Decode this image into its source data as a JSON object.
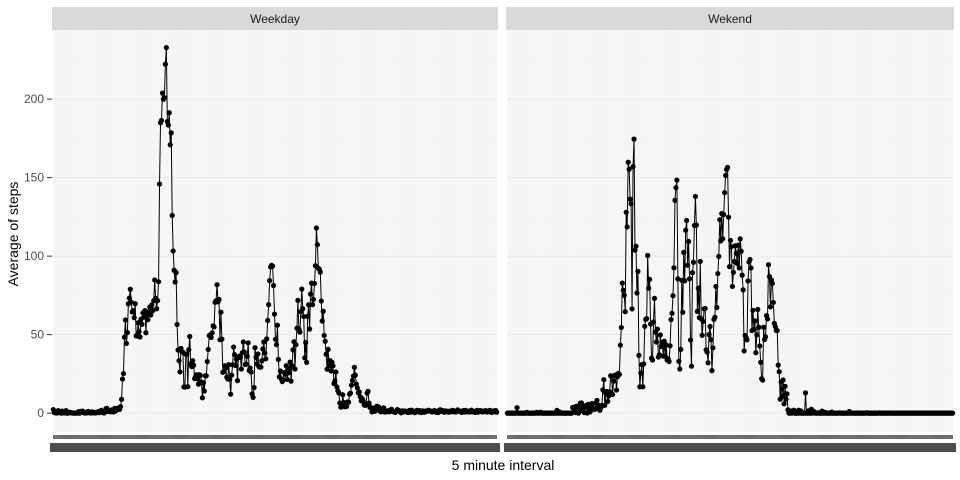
{
  "chart_data": {
    "type": "line",
    "facets": [
      {
        "label": "Weekday",
        "values": [
          2.3,
          0.4,
          0.2,
          0.2,
          0.1,
          1.6,
          0.7,
          1.1,
          0,
          1.3,
          0.3,
          0.1,
          0.4,
          1.6,
          0,
          0,
          0.4,
          0.6,
          0.2,
          0.3,
          0,
          0.1,
          0,
          0,
          0.2,
          0,
          1,
          0,
          0.9,
          1.2,
          1.3,
          0.3,
          0.1,
          0.2,
          0.1,
          0.9,
          1.1,
          0.2,
          0.4,
          0.1,
          0.8,
          0.4,
          0.1,
          0.5,
          0.2,
          0.7,
          0.9,
          0.3,
          1,
          1.8,
          0.6,
          0.4,
          0.1,
          0.9,
          2.9,
          3.1,
          1.2,
          1,
          1.5,
          0.9,
          2.1,
          0.9,
          0.8,
          3.1,
          1.4,
          2.5,
          3.2,
          3,
          2.4,
          4.2,
          8.8,
          21.7,
          25.2,
          48.4,
          59.3,
          44.4,
          51.3,
          69.6,
          73.3,
          78.9,
          70.7,
          64.5,
          65.3,
          60.8,
          69.7,
          49.3,
          49.1,
          57.6,
          51.9,
          48.5,
          59.9,
          56.6,
          63.8,
          61.1,
          65.3,
          51.2,
          63.9,
          59.5,
          64.7,
          67.6,
          62.5,
          68.9,
          65.3,
          71.6,
          84.8,
          73.2,
          66.5,
          71.7,
          83.7,
          145.9,
          184.9,
          186.4,
          203.8,
          199.9,
          200.9,
          222.2,
          232.8,
          185.7,
          183.5,
          191.3,
          170.9,
          178.5,
          125.9,
          103.3,
          91,
          83.5,
          89.5,
          56.5,
          40.2,
          33.4,
          26.3,
          41.3,
          39.1,
          38.8,
          16.7,
          16.6,
          37.6,
          37.6,
          16.9,
          40.4,
          48.8,
          31.5,
          29.7,
          33.4,
          30.5,
          22,
          23.3,
          24.5,
          21.9,
          18.5,
          24.5,
          24,
          19.8,
          9.8,
          19.4,
          14.1,
          23.8,
          23.8,
          32.9,
          40.6,
          49.4,
          49.7,
          48.2,
          51.1,
          55.6,
          54.9,
          70.6,
          71.5,
          81.8,
          70.9,
          72.4,
          46.8,
          64.3,
          47.1,
          26,
          26.3,
          30.2,
          28.8,
          22.9,
          21.8,
          30.9,
          21.6,
          12.1,
          24.2,
          30.8,
          42.1,
          37.3,
          30.4,
          34.3,
          20.7,
          35.6,
          36.3,
          35.4,
          28.1,
          38.5,
          45.3,
          38.9,
          31,
          31.2,
          36.2,
          44.8,
          27.2,
          28.8,
          26.2,
          12.3,
          10,
          16.3,
          41.7,
          35.5,
          31.3,
          37.7,
          29.6,
          29.4,
          29.3,
          33.3,
          40.9,
          45.3,
          38.3,
          34.6,
          47.3,
          59,
          69.1,
          84.4,
          93.1,
          94.1,
          93.6,
          81.3,
          63.1,
          47.1,
          43.6,
          56,
          34.2,
          23.1,
          26.9,
          21.8,
          20.1,
          21.3,
          25.8,
          24.8,
          30.2,
          21.5,
          25.6,
          28.3,
          32.5,
          20.4,
          30.2,
          40.3,
          45.5,
          28.1,
          43.6,
          54.1,
          71.8,
          53.5,
          51.6,
          64.6,
          79,
          66.5,
          61.5,
          35.2,
          45,
          32.3,
          61.7,
          69,
          53.6,
          75.8,
          82.8,
          69.1,
          72.4,
          82.6,
          93.9,
          117.9,
          107.3,
          92.3,
          91.7,
          89.8,
          71.4,
          58.7,
          64.9,
          49.5,
          45.8,
          37.5,
          28,
          40.6,
          30.4,
          33.5,
          26.9,
          32.4,
          30.1,
          18.9,
          20.5,
          26.2,
          16.7,
          14.3,
          12.9,
          6.5,
          3.8,
          4.4,
          11.7,
          6.8,
          4.1,
          6.4,
          4.3,
          7.1,
          7,
          12.1,
          12.8,
          17.8,
          20.8,
          23.6,
          29.2,
          24.2,
          18.5,
          16.1,
          13,
          13.5,
          10.5,
          7.9,
          9.2,
          7.7,
          5.3,
          4.9,
          5.4,
          12.8,
          13.9,
          6.4,
          3.6,
          3.7,
          0.8,
          1.8,
          3.1,
          1.2,
          2.1,
          4.4,
          3.3,
          3.9,
          1.4,
          0.9,
          2.6,
          2.3,
          3.4,
          0.7,
          1.3,
          0.9,
          1.4,
          1.6,
          0.9,
          1.3,
          2.5,
          1.4,
          1,
          0.8,
          0.5,
          1.2,
          2.3,
          1.9,
          1.5,
          0.9,
          0.2,
          1.5,
          0.7,
          1.2,
          1.4,
          1.1,
          0.6,
          0.4,
          1.6,
          1.8,
          0.6,
          1.9,
          1.2,
          0.9,
          0.3,
          0.8,
          1.8,
          1.5,
          0.8,
          1.6,
          0.5,
          0.4,
          1.5,
          0.9,
          0.6,
          1.4,
          1.1,
          1.5,
          1.9,
          1.6,
          1.4,
          0.9,
          0.8,
          1.1,
          1.7,
          1.3,
          0.5,
          1.3,
          0.4,
          1.2,
          2.2,
          1.1,
          1.8,
          1.5,
          0.6,
          1.5,
          0.9,
          1.3,
          0.7,
          0.6,
          1.4,
          1.2,
          0.9,
          1.8,
          1.2,
          0.8,
          0.7,
          1.5,
          2.1,
          1.3,
          1.1,
          1.2,
          0.5,
          1.4,
          1.6,
          0.7,
          1.8,
          1.4,
          0.8,
          1.2,
          0.7,
          1.5,
          1.9,
          0.8,
          1.3,
          0.9,
          0.5,
          1.4,
          1.8,
          0.6,
          1.2,
          1.7,
          1.2,
          0.8,
          1.4,
          0.9,
          1.3,
          1.6,
          0.7,
          1.2,
          0.9,
          1.8,
          1.2,
          0.5,
          1.4,
          1.1,
          0.9,
          1.7,
          0.6
        ]
      },
      {
        "label": "Wekend",
        "values": [
          0,
          0,
          0,
          0,
          0,
          0,
          0,
          0,
          0,
          0,
          3.5,
          0,
          0,
          0,
          0,
          0,
          0,
          0,
          0,
          0,
          0.5,
          0,
          0,
          0,
          0,
          0,
          0,
          0,
          0,
          0,
          0.5,
          0,
          0,
          0.3,
          0.6,
          0,
          0,
          0,
          0,
          0,
          0,
          0,
          0,
          0,
          0,
          0,
          0,
          0,
          0,
          0,
          0,
          1.8,
          0,
          0,
          0.6,
          0,
          0,
          0,
          0,
          0,
          0,
          0,
          0,
          0,
          0,
          0,
          0,
          3.6,
          3,
          3.9,
          0.4,
          4.4,
          3.5,
          0,
          2.7,
          6.4,
          6.5,
          1.7,
          4.5,
          0.3,
          3.8,
          5,
          0.1,
          5.6,
          2.4,
          0.9,
          4,
          6.2,
          3.4,
          2.5,
          2.5,
          6.5,
          8.1,
          3.6,
          5,
          1.8,
          3.6,
          5,
          14.8,
          21.3,
          5,
          12.7,
          13.8,
          7.5,
          10.9,
          13.6,
          23.8,
          23.6,
          11.9,
          20.4,
          24,
          24.3,
          14.7,
          23.2,
          25.3,
          24.7,
          43.3,
          54.6,
          82.8,
          78.3,
          75,
          64.6,
          127.9,
          118.6,
          159.8,
          155.3,
          136.3,
          133.3,
          66.4,
          157,
          174.5,
          103.8,
          106.3,
          76.5,
          90.3,
          36.8,
          16.8,
          25.5,
          30.9,
          16.8,
          31.4,
          55.3,
          59.7,
          60.2,
          100.4,
          79.6,
          85.2,
          56.7,
          35,
          33.8,
          58.1,
          73.1,
          51.6,
          45.3,
          53.5,
          35.7,
          37.2,
          49.8,
          42.4,
          45.1,
          36.3,
          45.8,
          36.3,
          43.4,
          33.9,
          34.7,
          32.9,
          42.9,
          59.6,
          63.6,
          74.8,
          92.6,
          135.5,
          143.6,
          148.4,
          85.5,
          33,
          28.1,
          40.6,
          84.6,
          64.2,
          102.4,
          84.3,
          116.5,
          122.7,
          94.2,
          109.3,
          85.6,
          46.6,
          29.9,
          89.4,
          96.1,
          119.5,
          138,
          119.8,
          64.8,
          79.6,
          60.8,
          96.6,
          60.1,
          49.6,
          58.4,
          66.4,
          66.7,
          40.3,
          38.9,
          32.1,
          50,
          55.2,
          46.8,
          27.1,
          41.6,
          59.7,
          61.1,
          80.7,
          67.3,
          88.9,
          99.8,
          123.2,
          109.7,
          127.1,
          111.1,
          126.5,
          140.4,
          151.4,
          155.2,
          156.5,
          124.8,
          93.3,
          110,
          106.1,
          80.7,
          89.7,
          96.6,
          106.6,
          101.8,
          95.3,
          107,
          92.5,
          111,
          103.1,
          87.9,
          78.5,
          39.6,
          49.5,
          48.1,
          46.7,
          84.2,
          96.2,
          97.9,
          92.5,
          52.6,
          65.5,
          53.4,
          58.8,
          38.5,
          49.9,
          66,
          54.7,
          42.8,
          32.4,
          21.9,
          21,
          54.7,
          46.9,
          48.6,
          62.1,
          60,
          94.5,
          87,
          67.7,
          84.8,
          82.6,
          70.5,
          57.2,
          55.1,
          52.6,
          52.6,
          30.6,
          26.4,
          8.9,
          19.8,
          10.9,
          21.1,
          6,
          17.1,
          8.9,
          12.3,
          2.1,
          0,
          0,
          1.4,
          0,
          0.5,
          1.9,
          0,
          0,
          0,
          0,
          1.9,
          0,
          1.5,
          0,
          0,
          0,
          0,
          12.9,
          0,
          0,
          1.5,
          0,
          0,
          2.5,
          0,
          1.2,
          0.8,
          0,
          0,
          0,
          0.3,
          0,
          0,
          0,
          1.3,
          0,
          0,
          0.5,
          0,
          0,
          0,
          0,
          0,
          0,
          0.7,
          0,
          0,
          0,
          0,
          0,
          0,
          0,
          0.2,
          0,
          0,
          0,
          0,
          0,
          0,
          0,
          0,
          0,
          1.1,
          0,
          0,
          0,
          0,
          0,
          0,
          0,
          0,
          0.1,
          0,
          0,
          0,
          0,
          0,
          0,
          0,
          0,
          0.3,
          0,
          0,
          0,
          0,
          0,
          0,
          0,
          0,
          0,
          0,
          0,
          0,
          0.2,
          0,
          0,
          0,
          0,
          0,
          0,
          0,
          0,
          0,
          0,
          0.1,
          0,
          0,
          0,
          0,
          0,
          0,
          0,
          0,
          0,
          0,
          0,
          0,
          0,
          0,
          0,
          0,
          0,
          0,
          0,
          0,
          0,
          0,
          0,
          0,
          0,
          0,
          0,
          0,
          0,
          0,
          0,
          0,
          0,
          0,
          0,
          0,
          0,
          0,
          0,
          0,
          0,
          0,
          0,
          0,
          0,
          0,
          0,
          0,
          0,
          0,
          0,
          0,
          0,
          0,
          0,
          0,
          0,
          0,
          0,
          0,
          0,
          0,
          0,
          0
        ]
      }
    ],
    "xlabel": "5 minute interval",
    "ylabel": "Average of steps",
    "ylim": [
      -12,
      244
    ],
    "yticks": [
      0,
      50,
      100,
      150,
      200
    ],
    "grid": true,
    "legend": "none"
  }
}
